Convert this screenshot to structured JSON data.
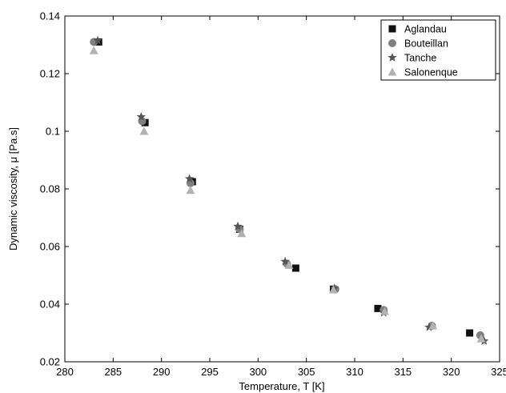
{
  "chart_data": {
    "type": "scatter",
    "title": "",
    "xlabel": "Temperature, T [K]",
    "ylabel": "Dynamic viscosity, μ [Pa.s]",
    "xlim": [
      280,
      325
    ],
    "ylim": [
      0.02,
      0.14
    ],
    "xticks": [
      280,
      285,
      290,
      295,
      300,
      305,
      310,
      315,
      320,
      325
    ],
    "xtick_labels": [
      "280",
      "285",
      "290",
      "295",
      "300",
      "305",
      "310",
      "315",
      "320",
      "325"
    ],
    "yticks": [
      0.02,
      0.04,
      0.06,
      0.08,
      0.1,
      0.12,
      0.14
    ],
    "ytick_labels": [
      "0.02",
      "0.04",
      "0.06",
      "0.08",
      "0.1",
      "0.12",
      "0.14"
    ],
    "grid": false,
    "legend_position": "top-right",
    "series": [
      {
        "name": "Aglandau",
        "marker": "square",
        "color": "#111111",
        "x": [
          283.5,
          288.3,
          293.2,
          298.1,
          303.9,
          307.8,
          312.4,
          321.9
        ],
        "y": [
          0.131,
          0.103,
          0.0825,
          0.066,
          0.0525,
          0.0452,
          0.0385,
          0.03
        ]
      },
      {
        "name": "Bouteillan",
        "marker": "circle",
        "color": "#808080",
        "x": [
          283.0,
          288.0,
          293.0,
          298.1,
          303.0,
          308.0,
          313.0,
          318.0,
          323.0
        ],
        "y": [
          0.131,
          0.1035,
          0.082,
          0.066,
          0.054,
          0.0452,
          0.038,
          0.0325,
          0.0292
        ]
      },
      {
        "name": "Tanche",
        "marker": "star",
        "color": "#555555",
        "x": [
          283.4,
          287.9,
          292.9,
          297.9,
          302.8,
          307.9,
          313.0,
          317.7,
          323.4
        ],
        "y": [
          0.1315,
          0.105,
          0.0835,
          0.067,
          0.0548,
          0.0455,
          0.037,
          0.032,
          0.0272
        ]
      },
      {
        "name": "Salonenque",
        "marker": "triangle",
        "color": "#b2b2b2",
        "x": [
          283.0,
          288.2,
          293.0,
          298.3,
          303.2,
          307.8,
          313.1,
          318.1,
          323.1
        ],
        "y": [
          0.128,
          0.1,
          0.0795,
          0.0645,
          0.0535,
          0.045,
          0.0375,
          0.0325,
          0.028
        ]
      }
    ]
  }
}
